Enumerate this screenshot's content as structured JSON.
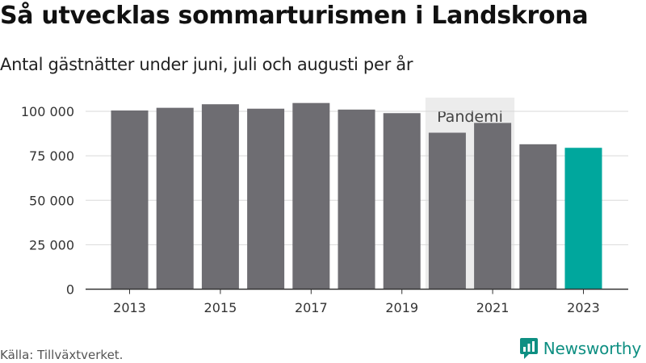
{
  "title": "Så utvecklas sommarturismen i Landskrona",
  "subtitle": "Antal gästnätter under juni, juli och augusti per år",
  "source": "Källa: Tillväxtverket.",
  "brand": "Newsworthy",
  "colors": {
    "bar": "#6e6d72",
    "highlight": "#00a79d",
    "pandemic_band": "#ececec",
    "grid": "#d9d9d9",
    "axis": "#333333",
    "brand": "#0e8f82"
  },
  "chart_data": {
    "type": "bar",
    "title": "Så utvecklas sommarturismen i Landskrona",
    "subtitle": "Antal gästnätter under juni, juli och augusti per år",
    "categories": [
      2013,
      2014,
      2015,
      2016,
      2017,
      2018,
      2019,
      2020,
      2021,
      2022,
      2023
    ],
    "values": [
      100500,
      102000,
      104000,
      101500,
      104700,
      101000,
      99000,
      88000,
      93500,
      81500,
      79500
    ],
    "highlight_category": 2023,
    "x_tick_labels": [
      "2013",
      "2015",
      "2017",
      "2019",
      "2021",
      "2023"
    ],
    "y_ticks": [
      0,
      25000,
      50000,
      75000,
      100000
    ],
    "y_tick_labels": [
      "0",
      "25 000",
      "50 000",
      "75 000",
      "100 000"
    ],
    "ylim": [
      0,
      110000
    ],
    "grid": true,
    "annotation": {
      "label": "Pandemi",
      "range": [
        2020,
        2021
      ]
    }
  }
}
